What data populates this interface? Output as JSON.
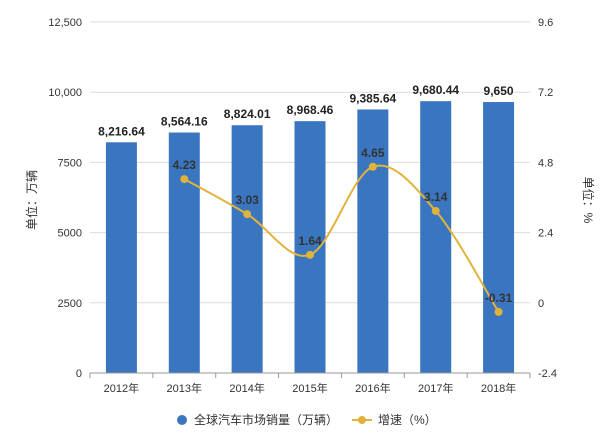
{
  "chart_data": {
    "type": "bar",
    "categories": [
      "2012年",
      "2013年",
      "2014年",
      "2015年",
      "2016年",
      "2017年",
      "2018年"
    ],
    "series": [
      {
        "name": "全球汽车市场销量（万辆）",
        "type": "bar",
        "axis": "left",
        "color": "#3A76C0",
        "values": [
          8216.64,
          8564.16,
          8824.01,
          8968.46,
          9385.64,
          9680.44,
          9650
        ],
        "labels": [
          "8,216.64",
          "8,564.16",
          "8,824.01",
          "8,968.46",
          "9,385.64",
          "9,680.44",
          "9,650"
        ]
      },
      {
        "name": "增速（%）",
        "type": "line",
        "axis": "right",
        "color": "#E0B33A",
        "values": [
          null,
          4.23,
          3.03,
          1.64,
          4.65,
          3.14,
          -0.31
        ],
        "labels": [
          "",
          "4.23",
          "3.03",
          "1.64",
          "4.65",
          "3.14",
          "-0.31"
        ]
      }
    ],
    "ylabel": "单位：万辆",
    "y2label": "单位：%",
    "ylim": [
      0,
      12500
    ],
    "y2lim": [
      -2.4,
      9.6
    ],
    "yticks": [
      "0",
      "2500",
      "5000",
      "7500",
      "10,000",
      "12,500"
    ],
    "y2ticks": [
      "-2.4",
      "0",
      "2.4",
      "4.8",
      "7.2",
      "9.6"
    ],
    "grid": true,
    "legend": "bottom"
  }
}
